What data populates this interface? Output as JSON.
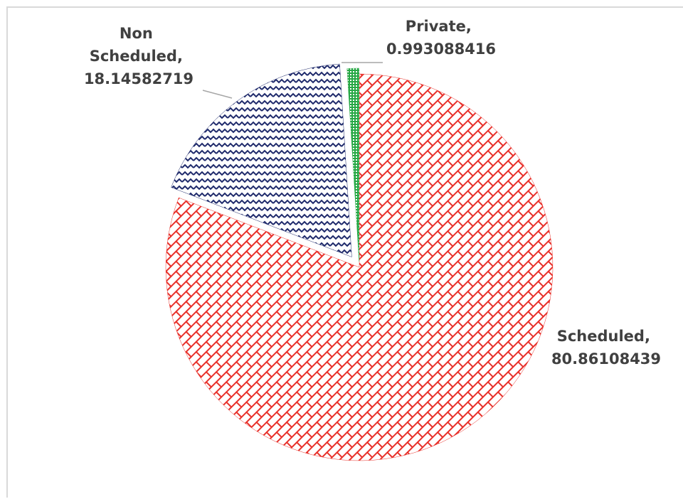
{
  "chart_data": {
    "type": "pie",
    "values": [
      80.86108439,
      18.14582719,
      0.993088416
    ],
    "value_labels": [
      "Scheduled, 80.86108439",
      "Non Scheduled, 18.14582719",
      "Private, 0.993088416"
    ],
    "colors": [
      "#e8302a",
      "#1f2a6b",
      "#27a845"
    ]
  }
}
